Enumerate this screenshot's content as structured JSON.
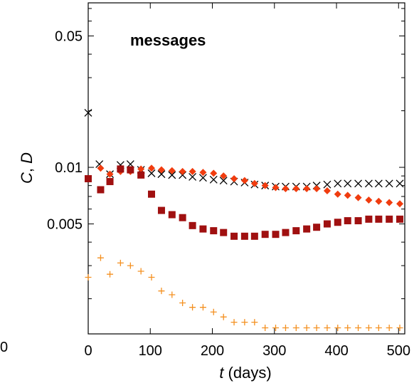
{
  "chart_data": {
    "type": "scatter",
    "title": "",
    "annotation": "messages",
    "xlabel_italic": "t",
    "xlabel_rest": " (days)",
    "ylabel_C": "C",
    "ylabel_sep": ", ",
    "ylabel_D": "D",
    "xlim": [
      0,
      510
    ],
    "ylim": [
      0.0013,
      0.075
    ],
    "yscale": "log",
    "x_ticks": [
      0,
      100,
      200,
      300,
      400,
      500
    ],
    "y_ticks": [
      {
        "value": 0.005,
        "label": "0.005"
      },
      {
        "value": 0.01,
        "label": "0.01"
      },
      {
        "value": 0.05,
        "label": "0.05"
      }
    ],
    "left_edge_label": "0",
    "grid": false,
    "series": [
      {
        "marker": "cross",
        "color": "#000000",
        "points": [
          [
            0,
            0.0195
          ],
          [
            18,
            0.0104
          ],
          [
            35,
            0.0092
          ],
          [
            52,
            0.0103
          ],
          [
            68,
            0.0104
          ],
          [
            85,
            0.0097
          ],
          [
            102,
            0.0093
          ],
          [
            118,
            0.0092
          ],
          [
            135,
            0.0091
          ],
          [
            152,
            0.0091
          ],
          [
            168,
            0.0089
          ],
          [
            185,
            0.0088
          ],
          [
            202,
            0.0086
          ],
          [
            218,
            0.0085
          ],
          [
            235,
            0.0084
          ],
          [
            252,
            0.0083
          ],
          [
            268,
            0.0081
          ],
          [
            285,
            0.008
          ],
          [
            302,
            0.0079
          ],
          [
            318,
            0.0079
          ],
          [
            335,
            0.0079
          ],
          [
            352,
            0.0079
          ],
          [
            368,
            0.008
          ],
          [
            385,
            0.0081
          ],
          [
            402,
            0.0082
          ],
          [
            418,
            0.0082
          ],
          [
            435,
            0.0082
          ],
          [
            452,
            0.0082
          ],
          [
            468,
            0.0082
          ],
          [
            485,
            0.0082
          ],
          [
            502,
            0.0082
          ]
        ]
      },
      {
        "marker": "diamond",
        "color": "#f03c0f",
        "points": [
          [
            20,
            0.0099
          ],
          [
            35,
            0.0092
          ],
          [
            52,
            0.0095
          ],
          [
            68,
            0.0095
          ],
          [
            85,
            0.0098
          ],
          [
            102,
            0.0099
          ],
          [
            118,
            0.0097
          ],
          [
            135,
            0.0096
          ],
          [
            152,
            0.0095
          ],
          [
            168,
            0.0095
          ],
          [
            185,
            0.0094
          ],
          [
            202,
            0.0093
          ],
          [
            218,
            0.009
          ],
          [
            235,
            0.0087
          ],
          [
            252,
            0.0085
          ],
          [
            268,
            0.0082
          ],
          [
            285,
            0.008
          ],
          [
            302,
            0.0078
          ],
          [
            318,
            0.0077
          ],
          [
            335,
            0.0077
          ],
          [
            352,
            0.0077
          ],
          [
            368,
            0.0077
          ],
          [
            385,
            0.0075
          ],
          [
            402,
            0.0072
          ],
          [
            418,
            0.0071
          ],
          [
            435,
            0.0069
          ],
          [
            452,
            0.0067
          ],
          [
            468,
            0.0066
          ],
          [
            485,
            0.0065
          ],
          [
            502,
            0.0064
          ]
        ]
      },
      {
        "marker": "square",
        "color": "#a01010",
        "points": [
          [
            0,
            0.0087
          ],
          [
            20,
            0.0076
          ],
          [
            35,
            0.0084
          ],
          [
            52,
            0.0098
          ],
          [
            68,
            0.0097
          ],
          [
            85,
            0.0091
          ],
          [
            102,
            0.0072
          ],
          [
            118,
            0.0059
          ],
          [
            135,
            0.0056
          ],
          [
            152,
            0.0054
          ],
          [
            168,
            0.0049
          ],
          [
            185,
            0.0047
          ],
          [
            202,
            0.0046
          ],
          [
            218,
            0.0045
          ],
          [
            235,
            0.0043
          ],
          [
            252,
            0.0043
          ],
          [
            268,
            0.0043
          ],
          [
            285,
            0.0044
          ],
          [
            302,
            0.0044
          ],
          [
            318,
            0.0045
          ],
          [
            335,
            0.0046
          ],
          [
            352,
            0.0047
          ],
          [
            368,
            0.0048
          ],
          [
            385,
            0.005
          ],
          [
            402,
            0.0051
          ],
          [
            418,
            0.0052
          ],
          [
            435,
            0.0052
          ],
          [
            452,
            0.0053
          ],
          [
            468,
            0.0053
          ],
          [
            485,
            0.0053
          ],
          [
            502,
            0.0053
          ]
        ]
      },
      {
        "marker": "plus",
        "color": "#f49020",
        "points": [
          [
            0,
            0.0026
          ],
          [
            20,
            0.0033
          ],
          [
            35,
            0.0027
          ],
          [
            52,
            0.0031
          ],
          [
            68,
            0.003
          ],
          [
            85,
            0.0028
          ],
          [
            102,
            0.0026
          ],
          [
            118,
            0.0022
          ],
          [
            135,
            0.0021
          ],
          [
            152,
            0.0019
          ],
          [
            168,
            0.0018
          ],
          [
            185,
            0.0018
          ],
          [
            202,
            0.0017
          ],
          [
            218,
            0.0016
          ],
          [
            235,
            0.0015
          ],
          [
            252,
            0.0015
          ],
          [
            268,
            0.0015
          ],
          [
            285,
            0.0014
          ],
          [
            302,
            0.0014
          ],
          [
            318,
            0.0014
          ],
          [
            335,
            0.0014
          ],
          [
            352,
            0.0014
          ],
          [
            368,
            0.0014
          ],
          [
            385,
            0.0014
          ],
          [
            402,
            0.0014
          ],
          [
            418,
            0.0014
          ],
          [
            435,
            0.0014
          ],
          [
            452,
            0.0014
          ],
          [
            468,
            0.0014
          ],
          [
            485,
            0.0014
          ],
          [
            502,
            0.0014
          ]
        ]
      }
    ]
  }
}
